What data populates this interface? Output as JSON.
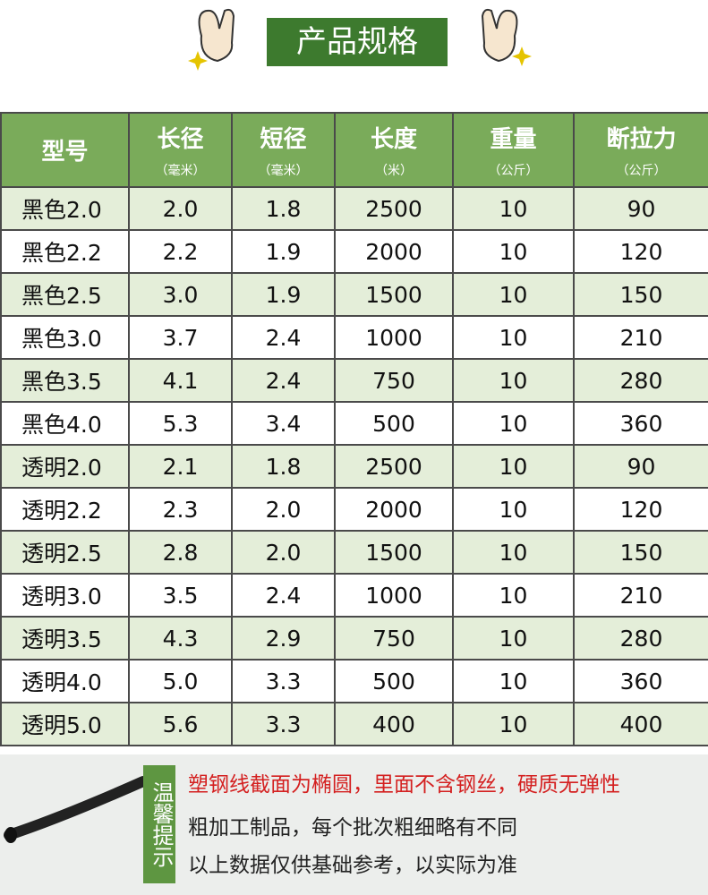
{
  "header": {
    "title": "产品规格"
  },
  "table": {
    "headers": [
      {
        "label": "型号"
      },
      {
        "label": "长径",
        "unit": "（毫米）"
      },
      {
        "label": "短径",
        "unit": "（毫米）"
      },
      {
        "label": "长度",
        "unit": "（米）"
      },
      {
        "label": "重量",
        "unit": "（公斤）"
      },
      {
        "label": "断拉力",
        "unit": "（公斤）"
      }
    ],
    "rows": [
      [
        "黑色2.0",
        "2.0",
        "1.8",
        "2500",
        "10",
        "90"
      ],
      [
        "黑色2.2",
        "2.2",
        "1.9",
        "2000",
        "10",
        "120"
      ],
      [
        "黑色2.5",
        "3.0",
        "1.9",
        "1500",
        "10",
        "150"
      ],
      [
        "黑色3.0",
        "3.7",
        "2.4",
        "1000",
        "10",
        "210"
      ],
      [
        "黑色3.5",
        "4.1",
        "2.4",
        "750",
        "10",
        "280"
      ],
      [
        "黑色4.0",
        "5.3",
        "3.4",
        "500",
        "10",
        "360"
      ],
      [
        "透明2.0",
        "2.1",
        "1.8",
        "2500",
        "10",
        "90"
      ],
      [
        "透明2.2",
        "2.3",
        "2.0",
        "2000",
        "10",
        "120"
      ],
      [
        "透明2.5",
        "2.8",
        "2.0",
        "1500",
        "10",
        "150"
      ],
      [
        "透明3.0",
        "3.5",
        "2.4",
        "1000",
        "10",
        "210"
      ],
      [
        "透明3.5",
        "4.3",
        "2.9",
        "750",
        "10",
        "280"
      ],
      [
        "透明4.0",
        "5.0",
        "3.3",
        "500",
        "10",
        "360"
      ],
      [
        "透明5.0",
        "5.6",
        "3.3",
        "400",
        "10",
        "400"
      ]
    ]
  },
  "notice": {
    "label": "温馨提示",
    "lines": [
      "塑钢线截面为椭圆，里面不含钢丝，硬质无弹性",
      "粗加工制品，每个批次粗细略有不同",
      "以上数据仅供基础参考，以实际为准"
    ]
  }
}
